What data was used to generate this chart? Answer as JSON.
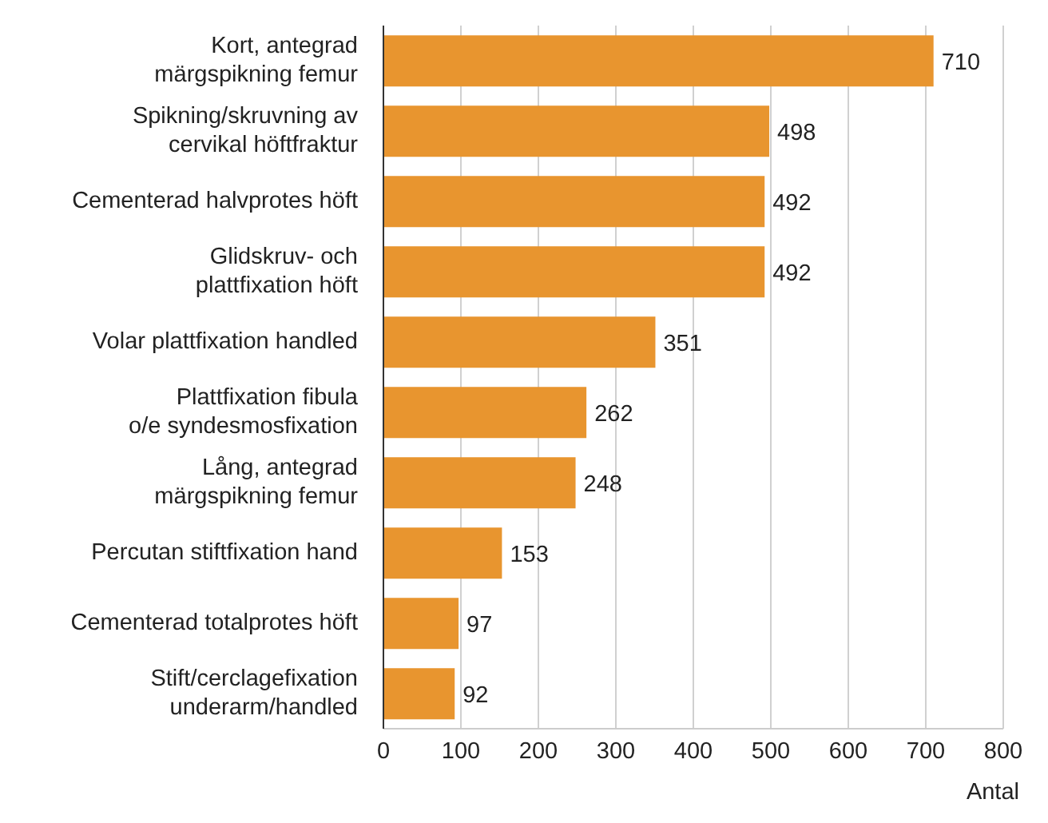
{
  "chart_data": {
    "type": "bar",
    "orientation": "horizontal",
    "xlabel": "Antal",
    "categories": [
      "Kort, antegrad\nmärgspikning femur",
      "Spikning/skruvning av\ncervikal höftfraktur",
      "Cementerad halvprotes höft",
      "Glidskruv- och\nplattfixation höft",
      "Volar plattfixation handled",
      "Plattfixation fibula\no/e syndesmosfixation",
      "Lång, antegrad\nmärgspikning femur",
      "Percutan stiftfixation hand",
      "Cementerad totalprotes höft",
      "Stift/cerclagefixation\nunderarm/handled"
    ],
    "values": [
      710,
      498,
      492,
      492,
      351,
      262,
      248,
      153,
      97,
      92
    ],
    "color": "#e8952f",
    "xlim": [
      0,
      800
    ],
    "xticks": [
      0,
      100,
      200,
      300,
      400,
      500,
      600,
      700,
      800
    ],
    "grid": "x",
    "data_labels": true
  }
}
